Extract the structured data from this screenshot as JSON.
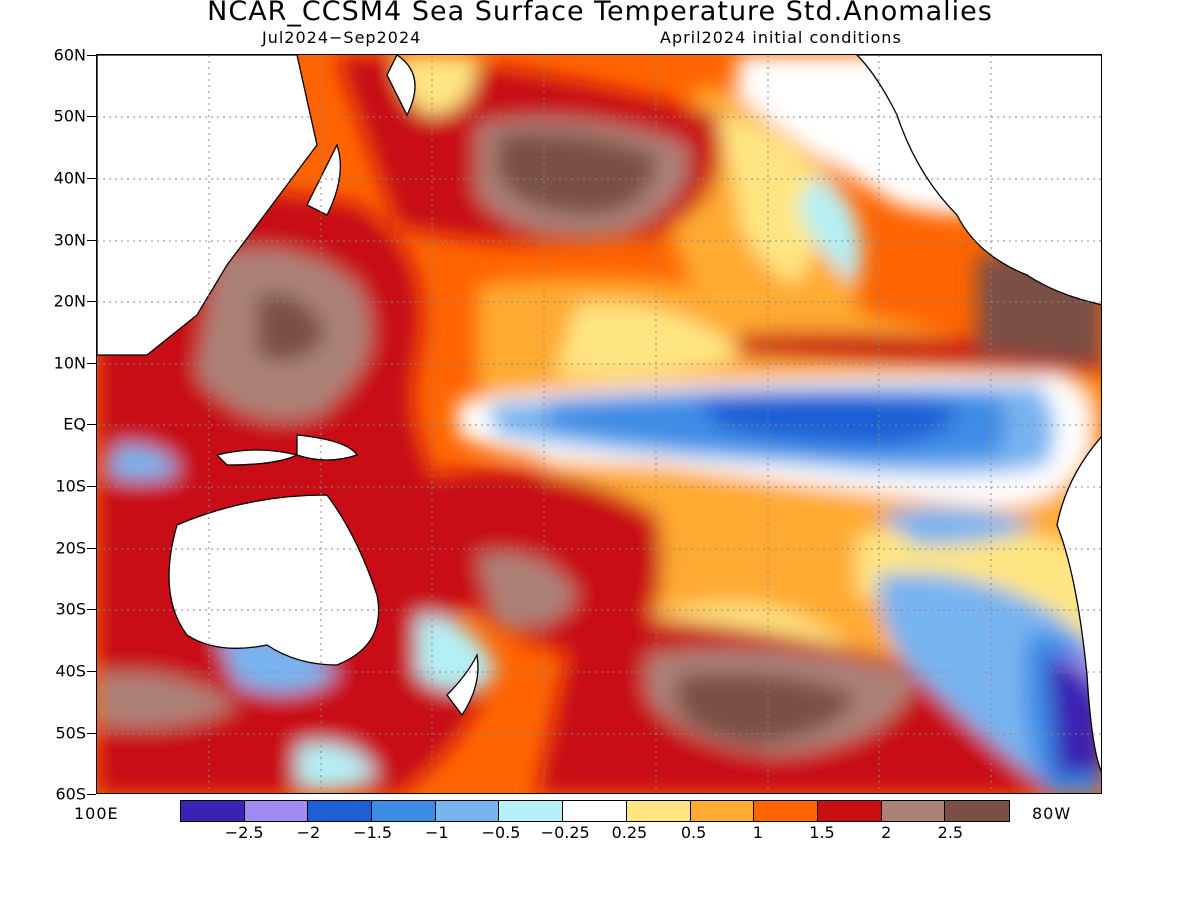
{
  "title": "NCAR_CCSM4 Sea Surface Temperature Std.Anomalies",
  "period": "Jul2024−Sep2024",
  "init": "April2024 initial conditions",
  "lat_labels": [
    "60N",
    "50N",
    "40N",
    "30N",
    "20N",
    "10N",
    "EQ",
    "10S",
    "20S",
    "30S",
    "40S",
    "50S",
    "60S"
  ],
  "lon_left": "100E",
  "lon_right": "80W",
  "colorbar": {
    "colors": [
      "#3a22b2",
      "#a08cf0",
      "#1f5fd6",
      "#3c8ce6",
      "#78b4f0",
      "#b4f0f5",
      "#ffffff",
      "#ffe682",
      "#ffaa32",
      "#ff6400",
      "#c80f14",
      "#ac8278",
      "#7a5044"
    ],
    "labels": [
      "−2.5",
      "−2",
      "−1.5",
      "−1",
      "−0.5",
      "−0.25",
      "0.25",
      "0.5",
      "1",
      "1.5",
      "2",
      "2.5"
    ]
  }
}
